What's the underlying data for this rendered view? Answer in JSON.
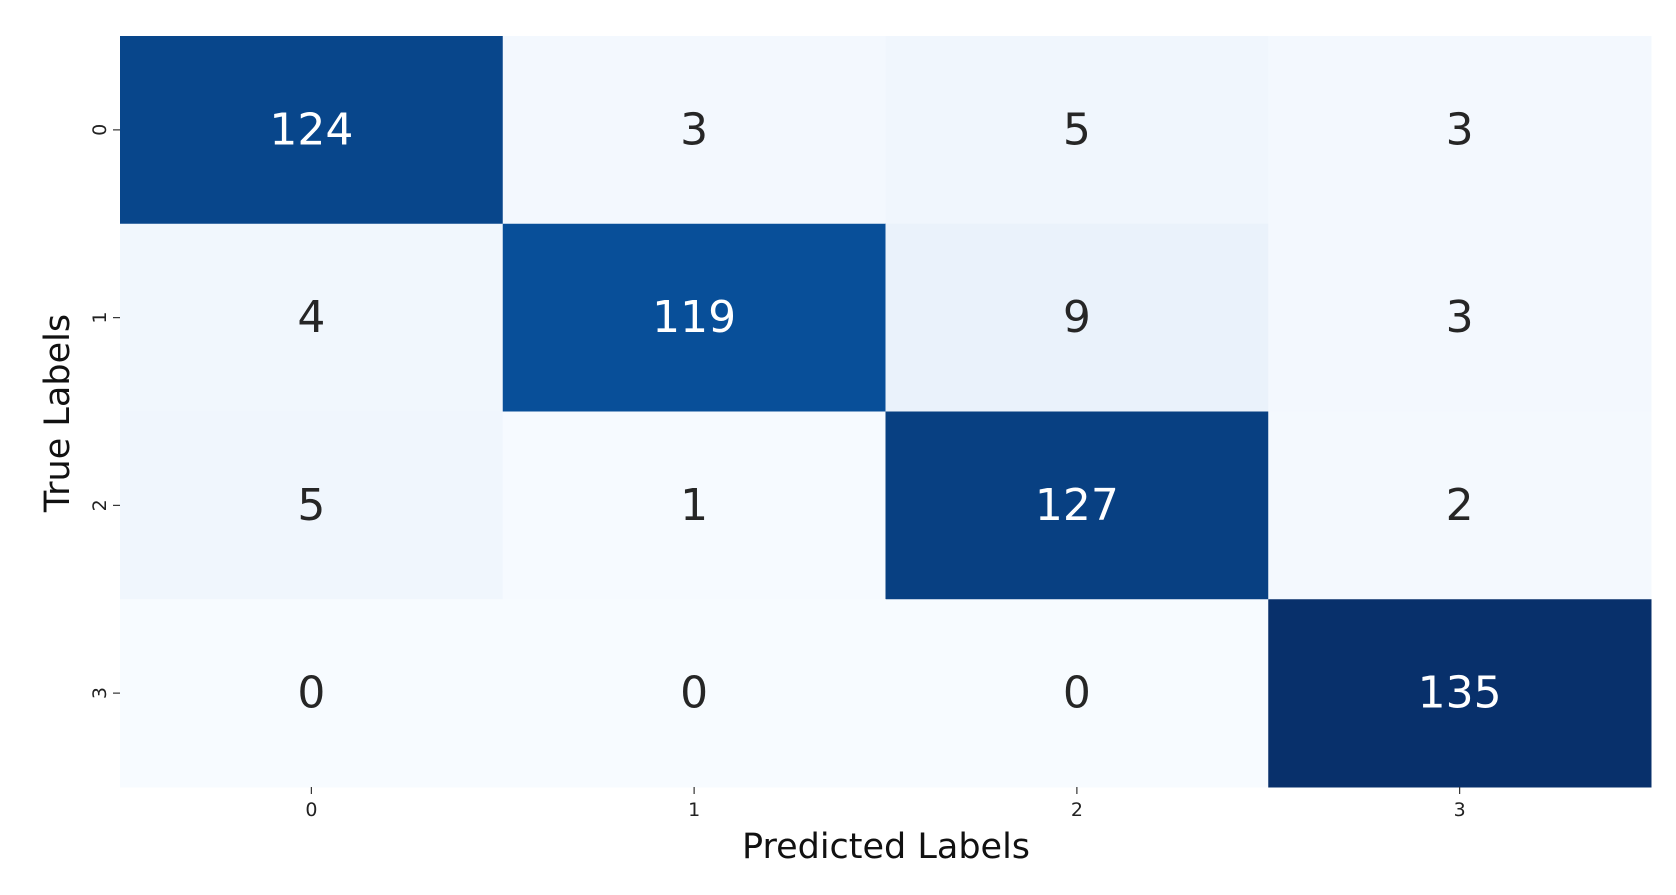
{
  "chart_data": {
    "type": "heatmap",
    "title": "",
    "xlabel": "Predicted Labels",
    "ylabel": "True Labels",
    "x_categories": [
      "0",
      "1",
      "2",
      "3"
    ],
    "y_categories": [
      "0",
      "1",
      "2",
      "3"
    ],
    "values": [
      [
        124,
        3,
        5,
        3
      ],
      [
        4,
        119,
        9,
        3
      ],
      [
        5,
        1,
        127,
        2
      ],
      [
        0,
        0,
        0,
        135
      ]
    ],
    "colormap": "Blues",
    "colorbar": false,
    "annotations": true
  }
}
